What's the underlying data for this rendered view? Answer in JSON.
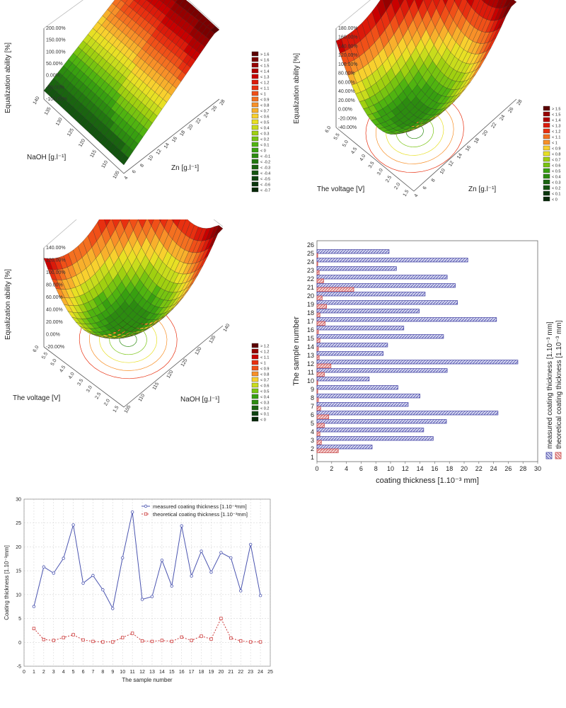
{
  "surface_legend_items": [
    "> 1.6",
    "< 1.6",
    "< 1.5",
    "< 1.4",
    "< 1.3",
    "< 1.2",
    "< 1.1",
    "< 1",
    "< 0.9",
    "< 0.8",
    "< 0.7",
    "< 0.6",
    "< 0.5",
    "< 0.4",
    "< 0.3",
    "< 0.2",
    "< 0.1",
    "< 0",
    "< -0.1",
    "< -0.2",
    "< -0.3",
    "< -0.4",
    "< -0.5",
    "< -0.6",
    "< -0.7"
  ],
  "legend_colors": [
    "#5c0000",
    "#7a0000",
    "#960000",
    "#b00000",
    "#c80000",
    "#dc1a0a",
    "#e83010",
    "#f05018",
    "#f47020",
    "#f89028",
    "#f8b02c",
    "#f8d02e",
    "#e8e024",
    "#c8dc1c",
    "#a0d010",
    "#78c410",
    "#50b410",
    "#38a010",
    "#2c8c10",
    "#227810",
    "#1a6410",
    "#145410",
    "#0e4410",
    "#0a360c",
    "#062808"
  ],
  "surface_legend_b_items": [
    "> 1.5",
    "< 1.5",
    "< 1.4",
    "< 1.3",
    "< 1.2",
    "< 1.1",
    "< 1",
    "< 0.9",
    "< 0.8",
    "< 0.7",
    "< 0.6",
    "< 0.5",
    "< 0.4",
    "< 0.3",
    "< 0.2",
    "< 0.1",
    "< 0"
  ],
  "surface_legend_c_items": [
    "> 1.2",
    "< 1.2",
    "< 1.1",
    "< 1",
    "< 0.9",
    "< 0.8",
    "< 0.7",
    "< 0.6",
    "< 0.5",
    "< 0.4",
    "< 0.3",
    "< 0.2",
    "< 0.1",
    "< 0"
  ],
  "chart_data": [
    {
      "type": "surface",
      "zlabel": "Equalization ability [%]",
      "xlabel": "Zn [g.l⁻¹]",
      "ylabel": "NaOH [g.l⁻¹]",
      "z_ticks": [
        "200.00%",
        "150.00%",
        "100.00%",
        "50.00%",
        "0.00%",
        "-50.00%",
        "-100.00%"
      ],
      "x_ticks": [
        "4",
        "6",
        "8",
        "10",
        "12",
        "14",
        "16",
        "18",
        "20",
        "22",
        "24",
        "26",
        "28"
      ],
      "y_ticks": [
        "105",
        "110",
        "115",
        "120",
        "125",
        "130",
        "135",
        "140"
      ]
    },
    {
      "type": "surface",
      "zlabel": "Equalization ability [%]",
      "xlabel": "Zn [g.l⁻¹]",
      "ylabel": "The voltage [V]",
      "z_ticks": [
        "180.00%",
        "160.00%",
        "140.00%",
        "120.00%",
        "100.00%",
        "80.00%",
        "60.00%",
        "40.00%",
        "20.00%",
        "0.00%",
        "-20.00%",
        "-40.00%"
      ],
      "x_ticks": [
        "4",
        "6",
        "8",
        "10",
        "12",
        "14",
        "16",
        "18",
        "20",
        "22",
        "24",
        "26",
        "28"
      ],
      "y_ticks": [
        "1.5",
        "2.0",
        "2.5",
        "3.0",
        "3.5",
        "4.0",
        "4.5",
        "5.0",
        "5.5",
        "6.0"
      ]
    },
    {
      "type": "surface",
      "zlabel": "Equalization ability [%]",
      "xlabel": "NaOH [g.l⁻¹]",
      "ylabel": "The voltage [V]",
      "z_ticks": [
        "140.00%",
        "120.00%",
        "100.00%",
        "80.00%",
        "60.00%",
        "40.00%",
        "20.00%",
        "0.00%",
        "-20.00%"
      ],
      "x_ticks": [
        "105",
        "110",
        "115",
        "120",
        "125",
        "130",
        "135",
        "140"
      ],
      "y_ticks": [
        "1.5",
        "2.0",
        "2.5",
        "3.0",
        "3.5",
        "4.0",
        "4.5",
        "5.0",
        "5.5",
        "6.0"
      ]
    },
    {
      "type": "bar",
      "orientation": "horizontal",
      "xlabel": "coating thickness [1.10⁻³ mm]",
      "ylabel": "The sample number",
      "xlim": [
        0,
        30
      ],
      "x_ticks": [
        0,
        2,
        4,
        6,
        8,
        10,
        12,
        14,
        16,
        18,
        20,
        22,
        24,
        26,
        28,
        30
      ],
      "categories": [
        1,
        2,
        3,
        4,
        5,
        6,
        7,
        8,
        9,
        10,
        11,
        12,
        13,
        14,
        15,
        16,
        17,
        18,
        19,
        20,
        21,
        22,
        23,
        24,
        25,
        26
      ],
      "series": [
        {
          "name": "measured coating thickness [1.10⁻³ mm]",
          "values": [
            null,
            7.5,
            15.8,
            14.5,
            17.6,
            24.6,
            12.4,
            14,
            11,
            7.1,
            17.7,
            27.3,
            9,
            9.6,
            17.2,
            11.8,
            24.4,
            13.9,
            19.1,
            14.7,
            18.8,
            17.7,
            10.8,
            20.5,
            9.8,
            null
          ]
        },
        {
          "name": "theoretical coating thickness [1.10⁻³ mm]",
          "values": [
            null,
            2.9,
            0.6,
            0.4,
            1,
            1.6,
            0.5,
            0.2,
            0.1,
            0.1,
            1,
            1.9,
            0.3,
            0.2,
            0.4,
            0.2,
            1.1,
            0.4,
            1.3,
            0.7,
            5,
            0.9,
            0.3,
            0.1,
            0.1,
            null
          ]
        }
      ]
    },
    {
      "type": "line",
      "xlabel": "The sample number",
      "ylabel": "Coating thickness [1.10⁻³mm]",
      "xlim": [
        0,
        25
      ],
      "ylim": [
        -5,
        30
      ],
      "x": [
        1,
        2,
        3,
        4,
        5,
        6,
        7,
        8,
        9,
        10,
        11,
        12,
        13,
        14,
        15,
        16,
        17,
        18,
        19,
        20,
        21,
        22,
        23,
        24
      ],
      "series": [
        {
          "name": "measured coating thickness [1.10⁻³mm]",
          "values": [
            7.5,
            15.8,
            14.5,
            17.6,
            24.6,
            12.4,
            14,
            11,
            7.1,
            17.7,
            27.3,
            9,
            9.6,
            17.2,
            11.8,
            24.4,
            13.9,
            19.1,
            14.7,
            18.8,
            17.7,
            10.8,
            20.5,
            9.8
          ]
        },
        {
          "name": "theoretical coating thickness [1.10⁻³mm]",
          "values": [
            2.9,
            0.6,
            0.4,
            1,
            1.6,
            0.5,
            0.2,
            0.1,
            0.1,
            1,
            1.9,
            0.3,
            0.2,
            0.4,
            0.2,
            1.1,
            0.4,
            1.3,
            0.7,
            5,
            0.9,
            0.3,
            0.1,
            0.1
          ]
        }
      ]
    }
  ]
}
